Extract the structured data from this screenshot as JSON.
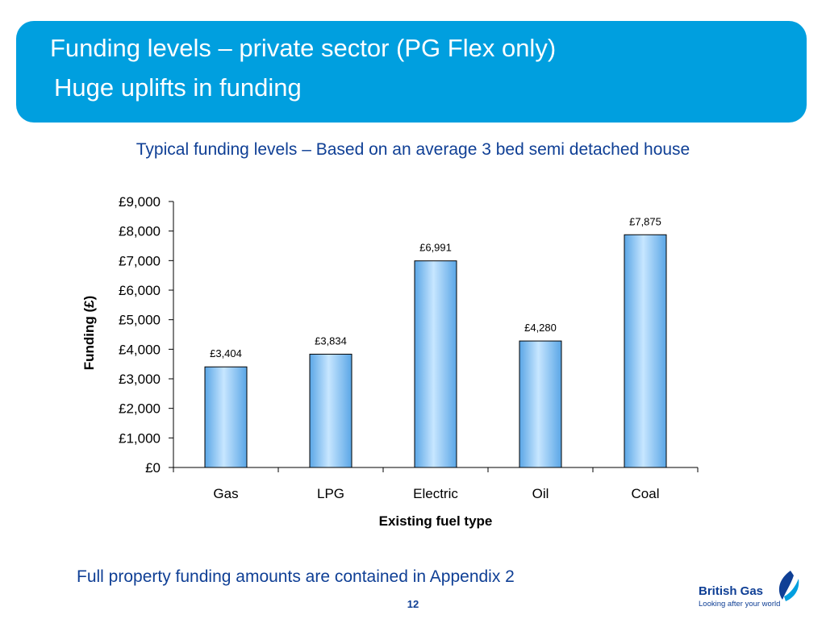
{
  "slide": {
    "title": "Funding levels – private sector (PG Flex only)",
    "subtitle": "Huge uplifts in funding",
    "chart_heading": "Typical funding levels – Based on an average 3 bed semi detached house",
    "footnote": "Full property funding amounts are contained in Appendix 2",
    "page_number": "12"
  },
  "logo": {
    "brand": "British Gas",
    "tagline": "Looking after your world"
  },
  "colors": {
    "header_bg": "#009fdf",
    "heading_text": "#0f3f95",
    "bar_fill_light": "#c7e6ff",
    "bar_fill_dark": "#5aa6e6"
  },
  "chart_data": {
    "type": "bar",
    "categories": [
      "Gas",
      "LPG",
      "Electric",
      "Oil",
      "Coal"
    ],
    "values": [
      3404,
      3834,
      6991,
      4280,
      7875
    ],
    "data_labels": [
      "£3,404",
      "£3,834",
      "£6,991",
      "£4,280",
      "£7,875"
    ],
    "xlabel": "Existing fuel type",
    "ylabel": "Funding (£)",
    "ylim": [
      0,
      9000
    ],
    "yticks": [
      0,
      1000,
      2000,
      3000,
      4000,
      5000,
      6000,
      7000,
      8000,
      9000
    ],
    "ytick_labels": [
      "£0",
      "£1,000",
      "£2,000",
      "£3,000",
      "£4,000",
      "£5,000",
      "£6,000",
      "£7,000",
      "£8,000",
      "£9,000"
    ],
    "grid": false,
    "legend": "none"
  }
}
